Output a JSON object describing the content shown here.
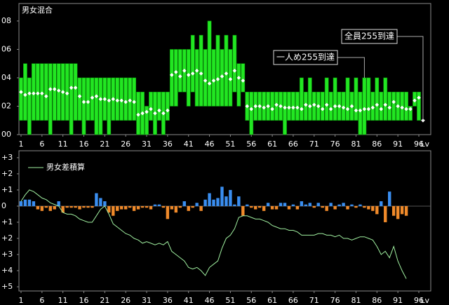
{
  "chart_data": [
    {
      "type": "range",
      "title": "男女混合",
      "xlabel": "Lv",
      "x": [
        1,
        2,
        3,
        4,
        5,
        6,
        7,
        8,
        9,
        10,
        11,
        12,
        13,
        14,
        15,
        16,
        17,
        18,
        19,
        20,
        21,
        22,
        23,
        24,
        25,
        26,
        27,
        28,
        29,
        30,
        31,
        32,
        33,
        34,
        35,
        36,
        37,
        38,
        39,
        40,
        41,
        42,
        43,
        44,
        45,
        46,
        47,
        48,
        49,
        50,
        51,
        52,
        53,
        54,
        55,
        56,
        57,
        58,
        59,
        60,
        61,
        62,
        63,
        64,
        65,
        66,
        67,
        68,
        69,
        70,
        71,
        72,
        73,
        74,
        75,
        76,
        77,
        78,
        79,
        80,
        81,
        82,
        83,
        84,
        85,
        86,
        87,
        88,
        89,
        90,
        91,
        92,
        93,
        94,
        95,
        96,
        97
      ],
      "high": [
        4,
        5,
        4,
        5,
        5,
        5,
        5,
        5,
        5,
        5,
        5,
        5,
        5,
        5,
        4,
        4,
        4,
        4,
        4,
        4,
        4,
        4,
        4,
        4,
        4,
        4,
        4,
        4,
        3,
        3,
        2,
        3,
        3,
        3,
        3,
        3,
        6,
        6,
        6,
        6,
        6,
        7,
        6,
        7,
        6,
        8,
        6,
        7,
        6,
        7,
        6,
        7,
        5,
        5,
        3,
        3,
        3,
        3,
        3,
        3,
        3,
        3,
        3,
        3,
        3,
        3,
        3,
        4,
        3,
        4,
        3,
        3,
        3,
        4,
        3,
        4,
        3,
        3,
        4,
        3,
        4,
        3,
        4,
        4,
        3,
        4,
        3,
        4,
        3,
        3,
        3,
        3,
        3,
        2,
        3,
        3,
        1
      ],
      "low": [
        1,
        1,
        0,
        1,
        1,
        1,
        1,
        0,
        1,
        1,
        1,
        1,
        0,
        1,
        1,
        0,
        1,
        1,
        0,
        0,
        1,
        0,
        1,
        1,
        1,
        1,
        1,
        1,
        0,
        0,
        0,
        1,
        0,
        1,
        0,
        1,
        2,
        2,
        3,
        3,
        2,
        3,
        2,
        2,
        2,
        2,
        2,
        2,
        2,
        2,
        2,
        3,
        2,
        3,
        1,
        0,
        1,
        1,
        1,
        1,
        1,
        1,
        1,
        0,
        1,
        1,
        1,
        1,
        1,
        1,
        1,
        1,
        1,
        1,
        1,
        1,
        1,
        1,
        1,
        1,
        1,
        0,
        0,
        1,
        1,
        1,
        1,
        1,
        1,
        1,
        1,
        1,
        1,
        1,
        2,
        1,
        1
      ],
      "values": [
        3.0,
        2.8,
        2.9,
        2.9,
        2.9,
        2.9,
        2.7,
        3.2,
        3.2,
        3.1,
        3.0,
        2.9,
        3.3,
        3.3,
        2.7,
        2.3,
        2.3,
        2.6,
        2.7,
        2.5,
        2.5,
        2.4,
        2.5,
        2.4,
        2.4,
        2.3,
        2.4,
        2.3,
        1.4,
        1.5,
        1.6,
        1.8,
        1.5,
        1.7,
        1.5,
        1.7,
        4.2,
        4.4,
        4.1,
        4.5,
        4.2,
        4.3,
        4.5,
        4.3,
        3.8,
        3.6,
        3.8,
        3.9,
        4.1,
        4.3,
        3.9,
        4.5,
        4.0,
        3.8,
        2.0,
        1.8,
        2.0,
        2.0,
        1.9,
        2.0,
        1.8,
        2.1,
        2.0,
        1.9,
        1.9,
        1.9,
        1.9,
        1.8,
        2.1,
        2.0,
        2.1,
        2.0,
        1.8,
        2.1,
        1.8,
        2.0,
        2.0,
        1.9,
        1.8,
        2.0,
        1.7,
        1.7,
        1.8,
        1.8,
        1.9,
        2.1,
        1.8,
        2.1,
        1.9,
        2.3,
        2.0,
        1.9,
        1.8,
        1.8,
        2.4,
        2.6,
        1.0
      ],
      "color": "#22e622",
      "marker_color": "#ffffff",
      "xlim": [
        0.5,
        98.85
      ],
      "xticks": [
        1,
        6,
        11,
        16,
        21,
        26,
        31,
        36,
        41,
        46,
        51,
        56,
        61,
        66,
        71,
        76,
        81,
        86,
        91,
        96
      ],
      "ylim": [
        0,
        9.23
      ],
      "yticks": [
        {
          "value": 0,
          "label": "00"
        },
        {
          "value": 2,
          "label": "02"
        },
        {
          "value": 4,
          "label": "04"
        },
        {
          "value": 6,
          "label": "06"
        },
        {
          "value": 8,
          "label": "08"
        }
      ],
      "annotations": [
        {
          "text": "全員255到達",
          "x": 97,
          "y": 1.0
        },
        {
          "text": "一人め255到達",
          "x": 83,
          "y": 4
        }
      ]
    },
    {
      "type": "bar",
      "x": [
        1,
        2,
        3,
        4,
        5,
        6,
        7,
        8,
        9,
        10,
        11,
        12,
        13,
        14,
        15,
        16,
        17,
        18,
        19,
        20,
        21,
        22,
        23,
        24,
        25,
        26,
        27,
        28,
        29,
        30,
        31,
        32,
        33,
        34,
        35,
        36,
        37,
        38,
        39,
        40,
        41,
        42,
        43,
        44,
        45,
        46,
        47,
        48,
        49,
        50,
        51,
        52,
        53,
        54,
        55,
        56,
        57,
        58,
        59,
        60,
        61,
        62,
        63,
        64,
        65,
        66,
        67,
        68,
        69,
        70,
        71,
        72,
        73,
        74,
        75,
        76,
        77,
        78,
        79,
        80,
        81,
        82,
        83,
        84,
        85,
        86,
        87,
        88,
        89,
        90,
        91,
        92,
        93
      ],
      "values": [
        0.3,
        0.4,
        0.4,
        0.3,
        -0.2,
        -0.3,
        -0.1,
        -0.3,
        -0.2,
        0.3,
        -0.4,
        -0.1,
        -0.1,
        -0.1,
        -0.2,
        -0.1,
        -0.1,
        -0.1,
        0.8,
        0.5,
        0.3,
        -0.4,
        -0.6,
        -0.3,
        -0.2,
        -0.2,
        -0.1,
        -0.3,
        -0.2,
        -0.1,
        -0.1,
        -0.2,
        0.1,
        0.1,
        -0.1,
        -0.8,
        -0.2,
        -0.4,
        -0.1,
        0.3,
        -0.3,
        -0.1,
        0.2,
        -0.3,
        0.4,
        0.8,
        0.4,
        0.5,
        1.2,
        0.6,
        1.0,
        0.1,
        0.6,
        -0.6,
        0.1,
        -0.1,
        -0.2,
        -0.1,
        -0.3,
        0.2,
        -0.2,
        -0.2,
        0.2,
        0.2,
        -0.2,
        0.1,
        -0.2,
        0.3,
        0.1,
        0.2,
        -0.1,
        0.2,
        -0.1,
        -0.3,
        0.2,
        -0.2,
        0.1,
        0.2,
        -0.2,
        0.1,
        -0.1,
        0.1,
        -0.1,
        -0.2,
        -0.3,
        -0.5,
        0.3,
        -1.0,
        0.9,
        -0.6,
        -0.8,
        -0.5,
        -0.6
      ],
      "color_positive": "#3a8ef0",
      "color_negative": "#f08a2a",
      "series": [
        {
          "name": "男女差積算",
          "type": "line",
          "color": "#a0f0a0",
          "values": [
            0.3,
            0.7,
            1.0,
            0.9,
            0.7,
            0.5,
            0.4,
            0.2,
            0.1,
            0.0,
            -0.4,
            -0.5,
            -0.5,
            -0.6,
            -0.8,
            -0.9,
            -1.0,
            -1.0,
            -0.6,
            -0.2,
            0.0,
            -0.5,
            -1.1,
            -1.3,
            -1.5,
            -1.7,
            -1.8,
            -2.0,
            -2.1,
            -2.3,
            -2.2,
            -2.3,
            -2.4,
            -2.3,
            -2.4,
            -2.2,
            -2.8,
            -3.0,
            -3.2,
            -3.4,
            -3.8,
            -3.9,
            -3.8,
            -4.0,
            -4.3,
            -3.8,
            -3.6,
            -3.4,
            -2.6,
            -2.0,
            -1.8,
            -1.4,
            -0.7,
            -0.6,
            -0.6,
            -0.7,
            -0.8,
            -0.8,
            -0.9,
            -1.0,
            -1.2,
            -1.3,
            -1.4,
            -1.4,
            -1.5,
            -1.5,
            -1.6,
            -1.8,
            -1.8,
            -1.8,
            -1.8,
            -1.7,
            -1.7,
            -1.8,
            -1.8,
            -1.9,
            -1.8,
            -2.0,
            -2.0,
            -2.1,
            -2.0,
            -1.9,
            -1.9,
            -2.0,
            -2.1,
            -2.5,
            -3.0,
            -2.8,
            -3.2,
            -2.5,
            -3.4,
            -4.0,
            -4.5
          ]
        }
      ],
      "xlabel": "Lv",
      "xlim": [
        0.5,
        98.85
      ],
      "xticks": [
        1,
        6,
        11,
        16,
        21,
        26,
        31,
        36,
        41,
        46,
        51,
        56,
        61,
        66,
        71,
        76,
        81,
        86,
        91,
        96
      ],
      "ylim": [
        -5.26,
        3.43
      ],
      "yticks": [
        {
          "value": 3,
          "label": "+3"
        },
        {
          "value": 2,
          "label": "+2"
        },
        {
          "value": 1,
          "label": "+1"
        },
        0,
        {
          "value": -1,
          "label": "+1"
        },
        {
          "value": -2,
          "label": "+2"
        },
        {
          "value": -3,
          "label": "+3"
        },
        {
          "value": -4,
          "label": "+4"
        },
        {
          "value": -5,
          "label": "+5"
        }
      ]
    }
  ]
}
